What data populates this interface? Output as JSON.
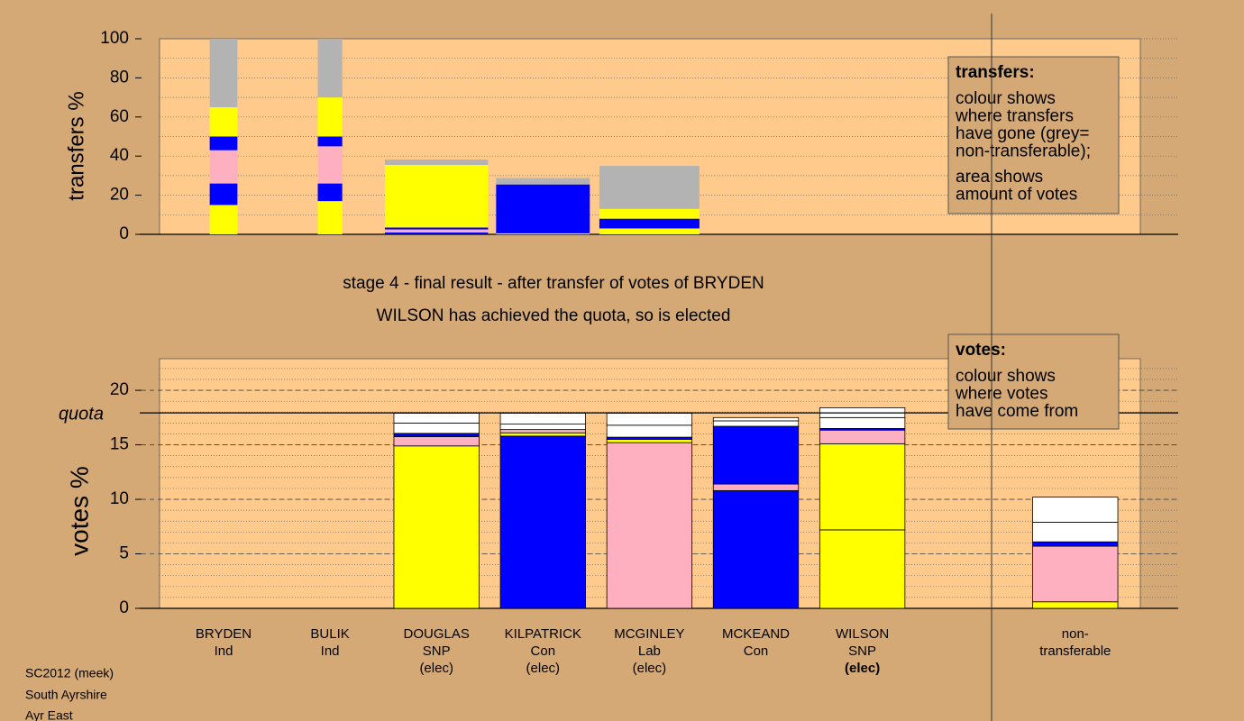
{
  "footer": [
    "SC2012 (meek)",
    "South Ayrshire",
    "Ayr East"
  ],
  "stage_text": "stage 4 - final result - after transfer of votes of BRYDEN",
  "result_text": "WILSON has achieved the quota, so is elected",
  "chart_data": [
    {
      "type": "stacked_bar",
      "ylabel": "transfers %",
      "ylim": [
        0,
        100
      ],
      "yticks": [
        0,
        20,
        40,
        60,
        80,
        100
      ],
      "minor_grid_step": 10,
      "legend": {
        "title": "transfers:",
        "paragraphs": [
          [
            "colour shows",
            "where transfers",
            "have gone (grey=",
            "non-transferable);"
          ],
          [
            "area shows",
            "amount of votes"
          ]
        ]
      },
      "bars": [
        {
          "width": 0.26,
          "colors": [
            "#ffff00",
            "#0000ff",
            "#ffb0c0",
            "#0000ff",
            "#ffff00",
            "#b3b3b3"
          ],
          "values": [
            15,
            11,
            17,
            7,
            15,
            35
          ]
        },
        {
          "width": 0.23,
          "colors": [
            "#ffff00",
            "#0000ff",
            "#ffb0c0",
            "#0000ff",
            "#ffff00",
            "#b3b3b3"
          ],
          "values": [
            17,
            9,
            19,
            5,
            20,
            30
          ]
        },
        {
          "width": 0.97,
          "colors": [
            "#0000ff",
            "#ffb0c0",
            "#0000ff",
            "#ffff00",
            "#b3b3b3"
          ],
          "values": [
            1,
            1.5,
            1,
            32,
            2.7
          ]
        },
        {
          "width": 0.88,
          "colors": [
            "#ffff00",
            "#0000ff",
            "#b3b3b3"
          ],
          "values": [
            0.5,
            25,
            3.3
          ]
        },
        {
          "width": 0.94,
          "colors": [
            "#ffff00",
            "#0000ff",
            "#ffff00",
            "#b3b3b3"
          ],
          "values": [
            3,
            5,
            5,
            22
          ]
        }
      ]
    },
    {
      "type": "stacked_bar",
      "ylabel": "votes %",
      "ylim": [
        0,
        22.9
      ],
      "yticks": [
        0,
        5,
        10,
        15,
        20
      ],
      "minor_grid_step": 1,
      "major_grid_dashed": true,
      "quota": {
        "value": 17.93,
        "label": "quota"
      },
      "legend": {
        "title": "votes:",
        "paragraphs": [
          [
            "colour shows",
            "where votes",
            "have come from"
          ]
        ]
      },
      "categories": [
        [
          "BRYDEN",
          "Ind"
        ],
        [
          "BULIK",
          "Ind"
        ],
        [
          "DOUGLAS",
          "SNP",
          "(elec)"
        ],
        [
          "KILPATRICK",
          "Con",
          "(elec)"
        ],
        [
          "MCGINLEY",
          "Lab",
          "(elec)"
        ],
        [
          "MCKEAND",
          "Con"
        ],
        [
          "WILSON",
          "SNP",
          "(elec)"
        ],
        null,
        [
          "non-",
          "transferable"
        ]
      ],
      "bold_category": 6,
      "bars": [
        {
          "width": 0.8,
          "colors": [
            "#ffff00"
          ],
          "values": [
            0
          ]
        },
        {
          "width": 0.8,
          "colors": [
            "#ffff00"
          ],
          "values": [
            0
          ]
        },
        {
          "width": 0.8,
          "colors": [
            "#ffff00",
            "#ffb0c0",
            "#0000ff",
            "#ffffff",
            "#ffffff"
          ],
          "values": [
            14.9,
            0.85,
            0.3,
            0.95,
            0.9
          ]
        },
        {
          "width": 0.8,
          "colors": [
            "#0000ff",
            "#ffff00",
            "#ffb0c0",
            "#ffffff",
            "#ffffff"
          ],
          "values": [
            15.8,
            0.3,
            0.3,
            0.5,
            1.0
          ]
        },
        {
          "width": 0.8,
          "colors": [
            "#ffb0c0",
            "#ffff00",
            "#0000ff",
            "#ffffff",
            "#ffffff"
          ],
          "values": [
            15.2,
            0.3,
            0.2,
            1.1,
            1.1
          ]
        },
        {
          "width": 0.8,
          "colors": [
            "#0000ff",
            "#ffb0c0",
            "#0000ff",
            "#ffffff",
            "#ffffff"
          ],
          "values": [
            10.8,
            0.6,
            5.3,
            0.5,
            0.3
          ]
        },
        {
          "width": 0.8,
          "colors": [
            "#ffff00",
            "#ffff00",
            "#ffb0c0",
            "#0000ff",
            "#ffffff",
            "#ffffff"
          ],
          "values": [
            7.2,
            7.9,
            1.25,
            0.15,
            1.0,
            0.9
          ]
        },
        null,
        {
          "width": 0.8,
          "colors": [
            "#ffff00",
            "#ffb0c0",
            "#0000ff",
            "#ffffff",
            "#ffffff"
          ],
          "values": [
            0.6,
            5.1,
            0.4,
            1.8,
            2.3
          ]
        }
      ]
    }
  ]
}
